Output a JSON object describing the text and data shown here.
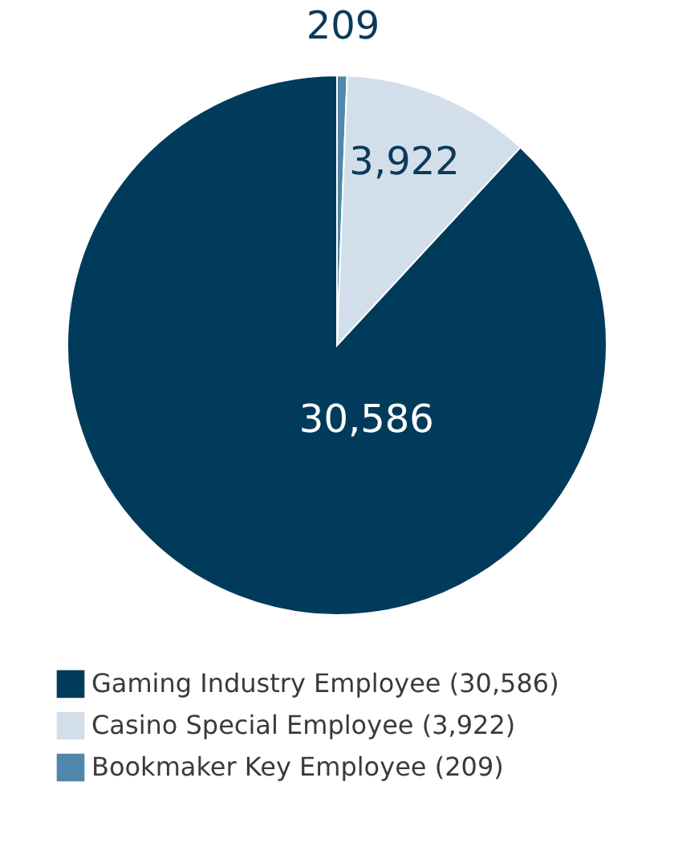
{
  "chart_data": {
    "type": "pie",
    "categories": [
      "Gaming Industry Employee (30,586)",
      "Casino Special Employee (3,922)",
      "Bookmaker Key Employee (209)"
    ],
    "values": [
      30586,
      3922,
      209
    ],
    "colors": [
      "#003b5c",
      "#d2dfea",
      "#4f88a8"
    ],
    "value_labels": [
      "30,586",
      "3,922",
      "209"
    ],
    "legend": "bottom"
  }
}
